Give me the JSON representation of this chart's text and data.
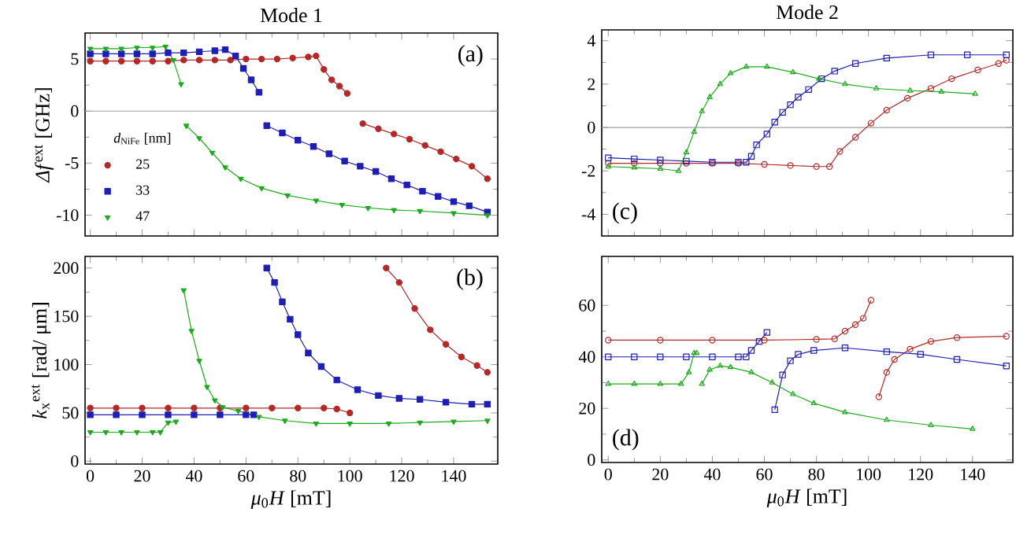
{
  "chart_data": [
    {
      "type": "line",
      "title": "Mode 1",
      "ylabel": "*Δf*$^{ext}$ [GHz]",
      "xlim": [
        -2,
        157
      ],
      "ylim": [
        -12,
        7.5
      ],
      "xticks": [
        0,
        20,
        40,
        60,
        80,
        100,
        120,
        140
      ],
      "yticks": [
        -10,
        -5,
        0,
        5
      ],
      "tick_labels": "y",
      "legend": "left",
      "legend_title": "*d*$_{NiFe}$ [nm]",
      "annotations": [
        "(a)"
      ],
      "ref_lines": [
        {
          "axis": "y",
          "value": 0,
          "color": "#a0a0a0"
        }
      ],
      "series": [
        {
          "name": "25",
          "color": "#b42828",
          "marker": "circle",
          "x": [
            0,
            6,
            12,
            18,
            24,
            30,
            36,
            42,
            48,
            54,
            60,
            66,
            72,
            78,
            84,
            87,
            90,
            93,
            96,
            99,
            102,
            105,
            111,
            117,
            123,
            129,
            135,
            141,
            147,
            153
          ],
          "values": [
            4.8,
            4.8,
            4.8,
            4.8,
            4.8,
            4.8,
            4.9,
            4.9,
            4.9,
            4.9,
            5.0,
            5.0,
            5.0,
            5.1,
            5.2,
            5.3,
            4.0,
            3.0,
            2.4,
            1.7,
            null,
            -1.2,
            -1.7,
            -2.2,
            -2.7,
            -3.3,
            -3.9,
            -4.6,
            -5.3,
            -6.5
          ]
        },
        {
          "name": "33",
          "color": "#1e1eb4",
          "marker": "square",
          "x": [
            0,
            6,
            12,
            18,
            24,
            30,
            36,
            42,
            48,
            52,
            56,
            59,
            62,
            65,
            66.5,
            68,
            74,
            80,
            86,
            92,
            98,
            104,
            110,
            116,
            122,
            128,
            134,
            140,
            146,
            153
          ],
          "values": [
            5.5,
            5.5,
            5.5,
            5.5,
            5.5,
            5.6,
            5.6,
            5.7,
            5.8,
            5.9,
            5.3,
            4.1,
            3.0,
            1.8,
            null,
            -1.4,
            -2.1,
            -2.8,
            -3.4,
            -4.1,
            -4.8,
            -5.3,
            -5.8,
            -6.5,
            -7.1,
            -7.7,
            -8.2,
            -8.7,
            -9.1,
            -9.7
          ]
        },
        {
          "name": "47",
          "color": "#1eaa1e",
          "marker": "triangle",
          "x": [
            0,
            6,
            12,
            18,
            24,
            29,
            32,
            35,
            36,
            37,
            42,
            47,
            52,
            58,
            66,
            76,
            87,
            97,
            107,
            117,
            127,
            140,
            153
          ],
          "values": [
            6.0,
            6.0,
            6.0,
            6.1,
            6.1,
            6.2,
            4.9,
            2.6,
            null,
            -1.4,
            -2.6,
            -4.0,
            -5.4,
            -6.5,
            -7.4,
            -8.1,
            -8.6,
            -9.0,
            -9.3,
            -9.5,
            -9.6,
            -9.8,
            -10.0
          ]
        }
      ]
    },
    {
      "type": "line",
      "xlabel": "*μ*$_{0}$*H* [mT]",
      "ylabel": "*k*$_{x}$$^{ext}$ [rad/ μm]",
      "xlim": [
        -2,
        157
      ],
      "ylim": [
        -3,
        212
      ],
      "xticks": [
        0,
        20,
        40,
        60,
        80,
        100,
        120,
        140
      ],
      "yticks": [
        0,
        50,
        100,
        150,
        200
      ],
      "annotations": [
        "(b)"
      ],
      "series": [
        {
          "color": "#b42828",
          "marker": "circle",
          "x": [
            0,
            10,
            20,
            30,
            40,
            50,
            60,
            70,
            80,
            90,
            95,
            100,
            106,
            114,
            119,
            125,
            131,
            137,
            143,
            149,
            153
          ],
          "values": [
            55,
            55,
            55,
            55,
            55,
            55,
            55,
            55,
            55,
            55,
            54,
            50,
            null,
            200,
            185,
            158,
            136,
            121,
            108,
            99,
            92
          ]
        },
        {
          "color": "#1e1eb4",
          "marker": "square",
          "x": [
            0,
            10,
            20,
            30,
            40,
            50,
            60,
            63,
            66,
            68,
            71,
            74,
            77,
            80,
            84,
            89,
            95,
            103,
            111,
            119,
            127,
            137,
            147,
            153
          ],
          "values": [
            48,
            48,
            48,
            48,
            48,
            48,
            48,
            48,
            null,
            200,
            185,
            165,
            147,
            131,
            112,
            98,
            84,
            74,
            68,
            65,
            64,
            61,
            59,
            59
          ]
        },
        {
          "color": "#1eaa1e",
          "marker": "triangle",
          "x": [
            0,
            6,
            12,
            18,
            24,
            27,
            30,
            33,
            35,
            36,
            39,
            42,
            45,
            48,
            51,
            57,
            65,
            75,
            87,
            100,
            115,
            127,
            140,
            153
          ],
          "values": [
            30,
            30,
            30,
            30,
            30,
            30,
            40,
            41,
            null,
            177,
            135,
            104,
            77,
            63,
            56,
            52,
            46,
            42,
            39,
            39,
            39,
            40,
            41,
            42
          ]
        }
      ]
    },
    {
      "type": "line",
      "title": "Mode 2",
      "xlim": [
        -2.5,
        155.5
      ],
      "ylim": [
        -5,
        4.5
      ],
      "xticks": [
        0,
        20,
        40,
        60,
        80,
        100,
        120,
        140
      ],
      "yticks": [
        -4,
        -2,
        0,
        2,
        4
      ],
      "tick_labels": "y",
      "annotations": [
        "(c)"
      ],
      "ref_lines": [
        {
          "axis": "y",
          "value": 0,
          "color": "#a0a0a0"
        }
      ],
      "series": [
        {
          "color": "#b42828",
          "marker": "circle",
          "x": [
            0,
            10,
            20,
            30,
            40,
            50,
            60,
            70,
            80,
            85,
            89,
            95,
            101,
            107,
            115,
            124,
            132,
            142,
            150,
            153
          ],
          "values": [
            -1.65,
            -1.65,
            -1.65,
            -1.65,
            -1.65,
            -1.65,
            -1.7,
            -1.75,
            -1.8,
            -1.8,
            -1.1,
            -0.45,
            0.2,
            0.8,
            1.35,
            1.8,
            2.25,
            2.65,
            2.95,
            3.1
          ]
        },
        {
          "color": "#1e1eb4",
          "marker": "square",
          "x": [
            0,
            10,
            20,
            30,
            40,
            50,
            53,
            55,
            57,
            61,
            64,
            67,
            70,
            73,
            77,
            82,
            87,
            95,
            107,
            124,
            138,
            153
          ],
          "values": [
            -1.4,
            -1.45,
            -1.5,
            -1.55,
            -1.6,
            -1.6,
            -1.6,
            -1.33,
            -0.8,
            -0.3,
            0.25,
            0.7,
            1.05,
            1.4,
            1.75,
            2.25,
            2.6,
            2.95,
            3.2,
            3.35,
            3.35,
            3.35
          ]
        },
        {
          "color": "#1eaa1e",
          "marker": "triangle",
          "x": [
            0,
            10,
            20,
            27,
            30,
            33,
            36,
            39,
            43,
            47,
            53,
            61,
            71,
            81,
            91,
            103,
            116,
            128,
            141
          ],
          "values": [
            -1.8,
            -1.85,
            -1.9,
            -2.0,
            -1.15,
            -0.2,
            0.75,
            1.4,
            2.0,
            2.5,
            2.8,
            2.8,
            2.55,
            2.25,
            2.0,
            1.8,
            1.7,
            1.65,
            1.55
          ]
        }
      ]
    },
    {
      "type": "line",
      "xlabel": "*μ*$_{0}$*H* [mT]",
      "xlim": [
        -2.5,
        155.5
      ],
      "ylim": [
        -1,
        79
      ],
      "xticks": [
        0,
        20,
        40,
        60,
        80,
        100,
        120,
        140
      ],
      "yticks": [
        0,
        20,
        40,
        60
      ],
      "annotations": [
        "(d)"
      ],
      "series": [
        {
          "color": "#b42828",
          "marker": "circle",
          "x": [
            0,
            20,
            40,
            60,
            80,
            87,
            91,
            95,
            98,
            101,
            102.5,
            104,
            107,
            110,
            116,
            124,
            134,
            153
          ],
          "values": [
            46.5,
            46.5,
            46.5,
            46.5,
            46.8,
            47,
            50,
            52.5,
            55,
            62,
            null,
            24.5,
            34,
            39,
            43,
            46,
            47.5,
            48
          ]
        },
        {
          "color": "#1e1eb4",
          "marker": "square",
          "x": [
            0,
            10,
            20,
            30,
            40,
            50,
            53,
            55,
            58,
            61,
            62.5,
            64,
            67,
            70,
            73,
            79,
            91,
            107,
            120,
            134,
            153
          ],
          "values": [
            40,
            40,
            40,
            40,
            40,
            40,
            40,
            42.5,
            46,
            49.5,
            null,
            19.5,
            33,
            38.5,
            41,
            42.5,
            43.5,
            42,
            41,
            39,
            36.5
          ]
        },
        {
          "color": "#1eaa1e",
          "marker": "triangle",
          "x": [
            0,
            10,
            20,
            28,
            31,
            33,
            34,
            35,
            36,
            39,
            43,
            47,
            55,
            63,
            71,
            79,
            91,
            107,
            124,
            140
          ],
          "values": [
            29.5,
            29.5,
            29.5,
            29.5,
            34,
            41.5,
            41.5,
            null,
            29.5,
            35,
            36.5,
            36,
            34,
            30,
            25.5,
            22,
            18.5,
            15.5,
            13.5,
            12
          ]
        }
      ]
    }
  ]
}
